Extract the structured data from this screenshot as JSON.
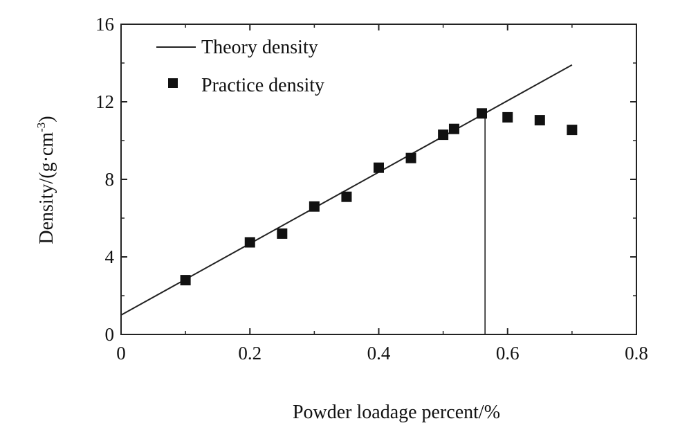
{
  "chart_data": {
    "type": "scatter",
    "xlabel": "Powder loadage percent/%",
    "ylabel_main": "Density/(g·cm",
    "ylabel_sup": "-3",
    "ylabel_close": ")",
    "xlim": [
      0,
      0.8
    ],
    "ylim": [
      0,
      16
    ],
    "xticks": [
      0,
      0.2,
      0.4,
      0.6,
      0.8
    ],
    "xtick_labels": [
      "0",
      "0.2",
      "0.4",
      "0.6",
      "0.8"
    ],
    "yticks": [
      0,
      4,
      8,
      12,
      16
    ],
    "ytick_labels": [
      "0",
      "4",
      "8",
      "12",
      "16"
    ],
    "grid": false,
    "legend_position": "top-left",
    "series": [
      {
        "name": "Theory density",
        "kind": "line",
        "x": [
          0,
          0.7
        ],
        "y": [
          1.0,
          13.9
        ]
      },
      {
        "name": "Practice density",
        "kind": "points",
        "x": [
          0.1,
          0.2,
          0.25,
          0.3,
          0.35,
          0.4,
          0.45,
          0.5,
          0.517,
          0.56,
          0.6,
          0.65,
          0.7
        ],
        "y": [
          2.8,
          4.75,
          5.2,
          6.6,
          7.1,
          8.6,
          9.1,
          10.3,
          10.6,
          11.4,
          11.2,
          11.05,
          10.55
        ]
      }
    ],
    "annotations": [
      {
        "kind": "vertical-line",
        "x": 0.565,
        "y_from": 0,
        "y_to": 11.4
      }
    ]
  }
}
